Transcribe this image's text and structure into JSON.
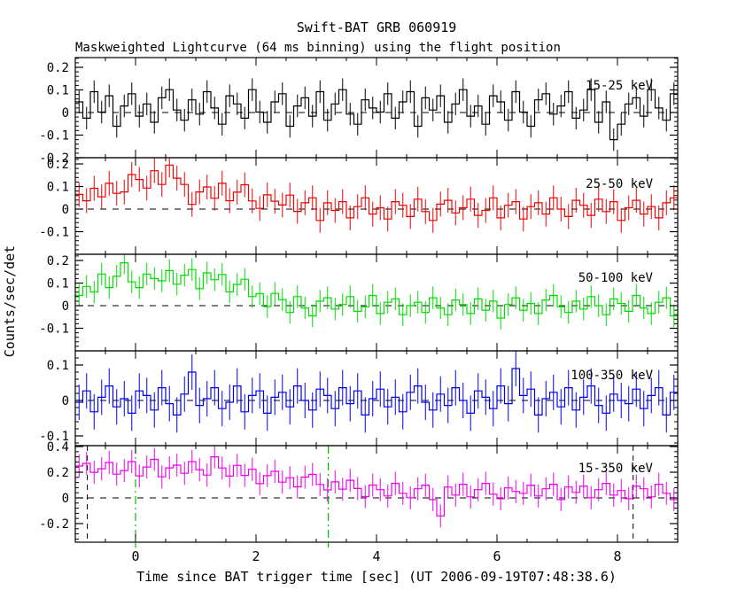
{
  "chart_data": {
    "type": "line",
    "title": "Swift-BAT GRB 060919",
    "subtitle": "Maskweighted Lightcurve (64 ms binning) using the flight position",
    "xlabel": "Time since BAT trigger time [sec] (UT 2006-09-19T07:48:38.6)",
    "ylabel": "Counts/sec/det",
    "grid": false,
    "legend_position": "inside-right-per-panel",
    "xlim": [
      -1,
      9
    ],
    "xticks": [
      0,
      2,
      4,
      6,
      8
    ],
    "xtick_labels": [
      "0",
      "2",
      "4",
      "6",
      "8"
    ],
    "x_minor_step": 0.5,
    "x_start": -1.0,
    "x_step": 0.125,
    "zero_line_style": "dashed",
    "bottom_panel_markers": {
      "green_dashdot_x": [
        0,
        3.2
      ],
      "black_dashed_x": [
        -0.8,
        8.26
      ],
      "green_color": "#00c000"
    },
    "panels": [
      {
        "label": "15-25 keV",
        "color": "#000000",
        "ylim": [
          -0.2,
          0.243
        ],
        "yticks": [
          0.2,
          0.1,
          0,
          -0.1,
          -0.2
        ],
        "y_minor_step": 0.02,
        "ebar": 0.05,
        "values": [
          0.047,
          -0.025,
          0.092,
          0.002,
          0.074,
          -0.061,
          0.029,
          0.083,
          -0.016,
          0.038,
          -0.043,
          0.065,
          0.101,
          0.011,
          -0.034,
          0.056,
          -0.007,
          0.092,
          0.02,
          -0.052,
          0.074,
          0.038,
          -0.025,
          0.101,
          0.002,
          -0.043,
          0.047,
          0.083,
          -0.061,
          0.029,
          0.065,
          -0.016,
          0.092,
          -0.034,
          0.038,
          0.101,
          -0.007,
          -0.052,
          0.056,
          0.02,
          0.002,
          0.083,
          -0.025,
          0.047,
          0.092,
          -0.061,
          0.065,
          0.011,
          0.074,
          -0.043,
          0.038,
          0.101,
          -0.016,
          0.029,
          -0.052,
          0.074,
          0.047,
          -0.034,
          0.092,
          0.002,
          -0.061,
          0.056,
          0.083,
          -0.007,
          0.029,
          0.092,
          -0.025,
          0.011,
          0.101,
          -0.043,
          0.047,
          -0.12,
          -0.052,
          0.038,
          0.065,
          -0.016,
          0.101,
          0.02,
          -0.034,
          0.083
        ]
      },
      {
        "label": "25-50 keV",
        "color": "#ee0000",
        "ylim": [
          -0.2,
          0.2275
        ],
        "yticks": [
          0.2,
          0.1,
          0,
          -0.1
        ],
        "y_minor_step": 0.02,
        "ebar": 0.055,
        "values": [
          0.065,
          0.037,
          0.092,
          0.054,
          0.114,
          0.07,
          0.076,
          0.153,
          0.131,
          0.093,
          0.17,
          0.109,
          0.195,
          0.137,
          0.109,
          0.021,
          0.076,
          0.098,
          0.048,
          0.114,
          0.037,
          0.075,
          0.108,
          0.036,
          0.003,
          0.063,
          0.035,
          0.018,
          0.062,
          -0.01,
          0.028,
          0.05,
          -0.05,
          0.028,
          -0.006,
          0.033,
          -0.039,
          0.011,
          0.05,
          -0.022,
          0.006,
          -0.044,
          0.033,
          0.017,
          -0.033,
          0.044,
          -0.011,
          -0.05,
          0.022,
          0.039,
          -0.017,
          0.006,
          0.044,
          -0.028,
          -0.006,
          0.05,
          -0.039,
          0.017,
          0.033,
          -0.044,
          0.011,
          0.028,
          -0.022,
          0.05,
          0.0,
          -0.033,
          0.039,
          0.017,
          -0.028,
          0.044,
          -0.011,
          0.033,
          -0.05,
          0.006,
          0.039,
          -0.022,
          0.011,
          -0.039,
          0.028,
          0.05
        ]
      },
      {
        "label": "50-100 keV",
        "color": "#00dd00",
        "ylim": [
          -0.2,
          0.2275
        ],
        "yticks": [
          0.2,
          0.1,
          0,
          -0.1
        ],
        "y_minor_step": 0.02,
        "ebar": 0.05,
        "values": [
          0.045,
          0.085,
          0.06,
          0.14,
          0.08,
          0.13,
          0.19,
          0.105,
          0.08,
          0.14,
          0.12,
          0.11,
          0.155,
          0.095,
          0.135,
          0.16,
          0.075,
          0.145,
          0.115,
          0.138,
          0.061,
          0.094,
          0.117,
          0.04,
          0.053,
          -0.004,
          0.054,
          0.027,
          -0.03,
          0.04,
          -0.01,
          -0.045,
          0.02,
          0.035,
          -0.015,
          0.005,
          0.04,
          -0.025,
          -0.005,
          0.045,
          -0.035,
          0.015,
          0.03,
          -0.04,
          0.0,
          0.015,
          -0.03,
          0.035,
          -0.01,
          -0.04,
          0.025,
          0.005,
          -0.035,
          0.03,
          -0.02,
          0.02,
          -0.055,
          0.005,
          0.035,
          -0.02,
          0.01,
          -0.035,
          0.025,
          0.045,
          -0.005,
          -0.03,
          0.02,
          -0.015,
          0.04,
          0.0,
          -0.04,
          0.03,
          0.01,
          -0.025,
          0.045,
          -0.01,
          -0.035,
          0.015,
          0.035,
          -0.045
        ]
      },
      {
        "label": "100-350 keV",
        "color": "#0000ee",
        "ylim": [
          -0.1275,
          0.14
        ],
        "yticks": [
          0.1,
          0,
          -0.1
        ],
        "y_minor_step": 0.02,
        "ebar": 0.05,
        "values": [
          -0.005,
          0.027,
          -0.032,
          0.009,
          0.041,
          -0.018,
          0.005,
          -0.036,
          0.027,
          0.014,
          -0.027,
          0.036,
          -0.009,
          -0.041,
          0.018,
          0.08,
          -0.014,
          0.005,
          0.036,
          -0.023,
          -0.005,
          0.041,
          -0.032,
          0.014,
          0.027,
          -0.036,
          0.009,
          0.023,
          -0.018,
          0.041,
          0.0,
          -0.027,
          0.032,
          0.014,
          -0.023,
          0.036,
          -0.009,
          0.027,
          -0.041,
          0.005,
          0.032,
          -0.018,
          0.009,
          -0.032,
          0.023,
          0.041,
          -0.005,
          -0.027,
          0.018,
          -0.014,
          0.036,
          0.0,
          -0.036,
          0.027,
          0.009,
          -0.023,
          0.041,
          -0.009,
          0.09,
          0.014,
          0.032,
          -0.041,
          0.005,
          0.023,
          -0.018,
          0.036,
          -0.027,
          0.009,
          0.041,
          -0.014,
          -0.036,
          0.018,
          0.0,
          -0.009,
          0.032,
          -0.023,
          0.014,
          0.036,
          -0.041,
          0.023
        ]
      },
      {
        "label": "15-350 keV",
        "color": "#ee00ee",
        "ylim": [
          -0.345,
          0.407
        ],
        "yticks": [
          0.4,
          0.2,
          0,
          -0.2
        ],
        "y_minor_step": 0.04,
        "ebar": 0.09,
        "values": [
          0.248,
          0.269,
          0.199,
          0.227,
          0.276,
          0.185,
          0.213,
          0.283,
          0.171,
          0.241,
          0.3,
          0.164,
          0.234,
          0.255,
          0.192,
          0.283,
          0.22,
          0.178,
          0.32,
          0.233,
          0.17,
          0.253,
          0.175,
          0.223,
          0.111,
          0.173,
          0.207,
          0.123,
          0.157,
          0.086,
          0.162,
          0.183,
          0.105,
          0.062,
          0.125,
          0.068,
          0.137,
          0.073,
          0.01,
          0.1,
          0.064,
          0.015,
          0.113,
          0.036,
          0.001,
          0.071,
          0.099,
          -0.013,
          -0.14,
          0.085,
          0.022,
          0.106,
          0.008,
          0.064,
          0.113,
          0.029,
          -0.006,
          0.078,
          0.05,
          0.036,
          0.099,
          0.015,
          0.071,
          0.106,
          -0.013,
          0.085,
          0.043,
          0.092,
          0.001,
          0.064,
          0.113,
          0.022,
          0.057,
          -0.006,
          0.092,
          0.071,
          0.008,
          0.106,
          0.036,
          -0.013
        ]
      }
    ]
  }
}
